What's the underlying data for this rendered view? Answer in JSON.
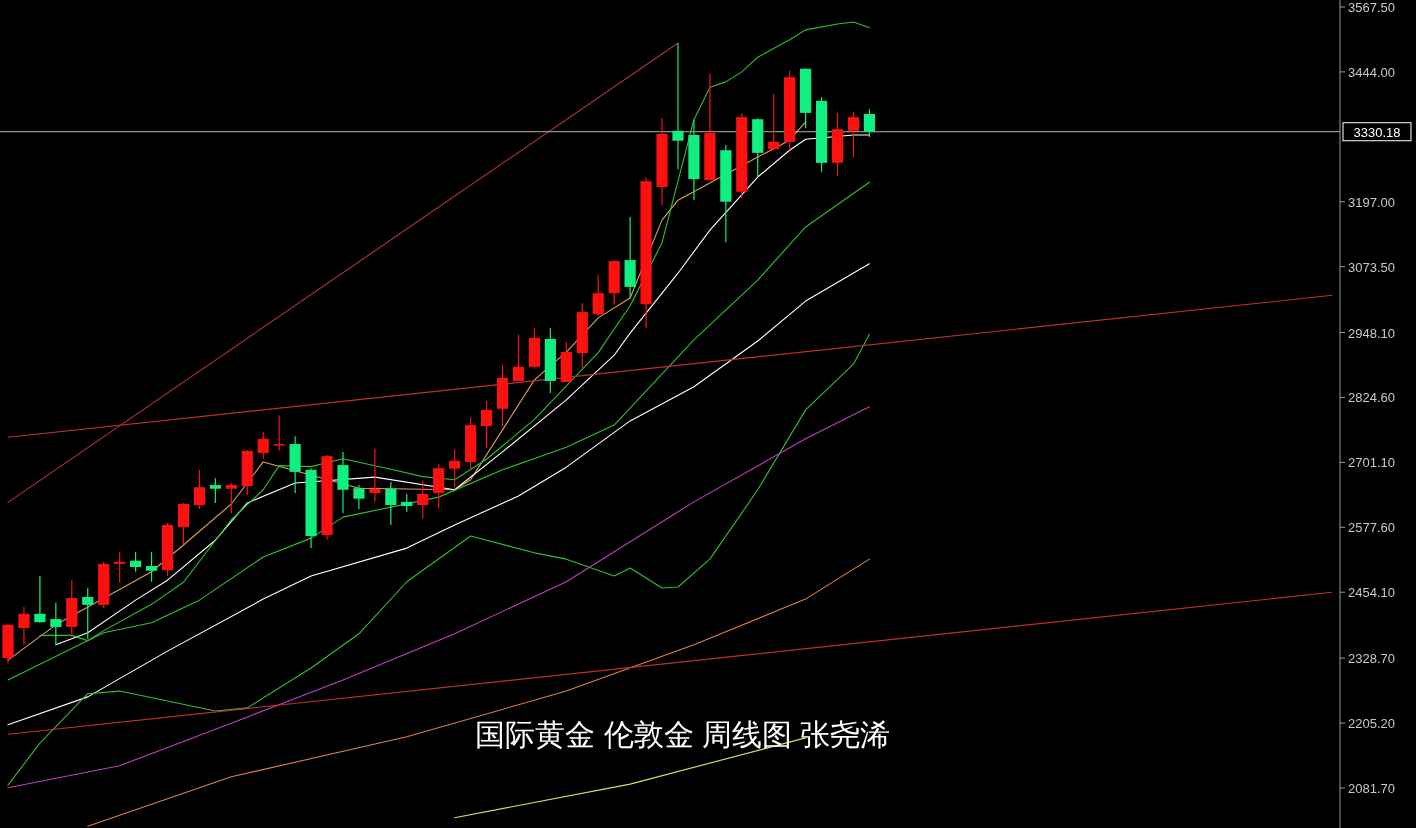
{
  "chart_data": {
    "type": "candlestick",
    "categories": [
      null,
      null,
      null,
      null,
      null,
      null,
      null,
      null,
      null,
      null,
      null,
      null,
      null,
      null,
      null,
      null,
      null,
      null,
      null,
      null,
      null,
      null,
      null,
      null,
      null,
      null,
      null,
      null,
      null,
      null,
      null,
      null,
      null,
      null,
      null,
      null,
      null,
      null,
      null,
      null,
      null,
      null,
      null,
      null,
      null,
      null,
      null,
      null,
      null,
      null,
      null,
      null,
      null,
      null,
      null,
      null,
      null,
      null,
      null,
      null,
      null,
      null,
      null,
      null,
      null,
      null,
      null,
      null,
      null,
      null,
      null,
      null,
      null,
      null,
      null,
      null,
      null,
      null,
      null,
      null,
      null,
      null,
      null,
      null
    ],
    "ohlc": [
      [
        2329,
        2394,
        2319,
        2392
      ],
      [
        2386,
        2426,
        2354,
        2413
      ],
      [
        2413,
        2485,
        2396,
        2397
      ],
      [
        2403,
        2434,
        2354,
        2388
      ],
      [
        2388,
        2477,
        2369,
        2443
      ],
      [
        2445,
        2462,
        2365,
        2430
      ],
      [
        2430,
        2512,
        2424,
        2508
      ],
      [
        2508,
        2531,
        2472,
        2512
      ],
      [
        2514,
        2531,
        2493,
        2502
      ],
      [
        2504,
        2531,
        2474,
        2495
      ],
      [
        2496,
        2586,
        2485,
        2582
      ],
      [
        2578,
        2624,
        2546,
        2622
      ],
      [
        2620,
        2687,
        2612,
        2654
      ],
      [
        2658,
        2671,
        2624,
        2651
      ],
      [
        2651,
        2662,
        2605,
        2658
      ],
      [
        2656,
        2724,
        2639,
        2723
      ],
      [
        2719,
        2759,
        2708,
        2746
      ],
      [
        2734,
        2791,
        2723,
        2736
      ],
      [
        2736,
        2751,
        2643,
        2683
      ],
      [
        2687,
        2690,
        2538,
        2561
      ],
      [
        2563,
        2715,
        2554,
        2713
      ],
      [
        2696,
        2721,
        2605,
        2649
      ],
      [
        2652,
        2658,
        2612,
        2632
      ],
      [
        2643,
        2727,
        2626,
        2651
      ],
      [
        2651,
        2664,
        2582,
        2620
      ],
      [
        2626,
        2641,
        2607,
        2618
      ],
      [
        2620,
        2666,
        2595,
        2641
      ],
      [
        2643,
        2698,
        2614,
        2690
      ],
      [
        2689,
        2725,
        2654,
        2704
      ],
      [
        2702,
        2786,
        2687,
        2772
      ],
      [
        2770,
        2818,
        2729,
        2801
      ],
      [
        2803,
        2886,
        2770,
        2862
      ],
      [
        2856,
        2944,
        2856,
        2883
      ],
      [
        2883,
        2957,
        2879,
        2938
      ],
      [
        2936,
        2957,
        2833,
        2856
      ],
      [
        2854,
        2930,
        2854,
        2911
      ],
      [
        2909,
        3004,
        2881,
        2987
      ],
      [
        2983,
        3058,
        2980,
        3023
      ],
      [
        3023,
        3086,
        3001,
        3084
      ],
      [
        3086,
        3168,
        3014,
        3035
      ],
      [
        3002,
        3244,
        2957,
        3236
      ],
      [
        3225,
        3356,
        3191,
        3326
      ],
      [
        3332,
        3499,
        3259,
        3313
      ],
      [
        3324,
        3353,
        3200,
        3240
      ],
      [
        3238,
        3440,
        3238,
        3328
      ],
      [
        3295,
        3305,
        3120,
        3197
      ],
      [
        3216,
        3366,
        3204,
        3358
      ],
      [
        3354,
        3356,
        3244,
        3290
      ],
      [
        3297,
        3402,
        3297,
        3311
      ],
      [
        3311,
        3446,
        3295,
        3434
      ],
      [
        3450,
        3451,
        3337,
        3366
      ],
      [
        3389,
        3396,
        3254,
        3271
      ],
      [
        3271,
        3366,
        3246,
        3335
      ],
      [
        3332,
        3368,
        3282,
        3358
      ],
      [
        3364,
        3373,
        3320,
        3330
      ],
      null,
      null,
      null,
      null,
      null,
      null,
      null,
      null,
      null,
      null,
      null,
      null,
      null,
      null,
      null,
      null,
      null,
      null,
      null,
      null,
      null,
      null,
      null,
      null,
      null,
      null,
      null,
      null,
      null
    ],
    "colors": [
      "#ff1010",
      "#ff1010",
      "#10f080",
      "#10f080",
      "#ff1010",
      "#10f080",
      "#ff1010",
      "#ff1010",
      "#10f080",
      "#10f080",
      "#ff1010",
      "#ff1010",
      "#ff1010",
      "#10f080",
      "#ff1010",
      "#ff1010",
      "#ff1010",
      "#ff1010",
      "#10f080",
      "#10f080",
      "#ff1010",
      "#10f080",
      "#10f080",
      "#ff1010",
      "#10f080",
      "#10f080",
      "#ff1010",
      "#ff1010",
      "#ff1010",
      "#ff1010",
      "#ff1010",
      "#ff1010",
      "#ff1010",
      "#ff1010",
      "#10f080",
      "#ff1010",
      "#ff1010",
      "#ff1010",
      "#ff1010",
      "#10f080",
      "#ff1010",
      "#ff1010",
      "#10f080",
      "#10f080",
      "#ff1010",
      "#10f080",
      "#ff1010",
      "#10f080",
      "#ff1010",
      "#ff1010",
      "#10f080",
      "#10f080",
      "#ff1010",
      "#ff1010",
      "#10f080",
      null,
      null,
      null,
      null,
      null,
      null,
      null,
      null,
      null,
      null,
      null,
      null,
      null,
      null,
      null,
      null,
      null,
      null,
      null,
      null,
      null,
      null,
      null,
      null,
      null,
      null,
      null,
      null,
      null
    ],
    "series": [
      {
        "type": "line",
        "color": "#e0a050",
        "values": [
          2325,
          null,
          null,
          2392,
          null,
          null,
          null,
          null,
          null,
          2493,
          null,
          2544,
          null,
          null,
          2622,
          null,
          2702,
          null,
          null,
          null,
          null,
          null,
          2652,
          null,
          null,
          null,
          null,
          null,
          2649,
          2668,
          null,
          2763,
          null,
          2858,
          null,
          2911,
          null,
          2976,
          null,
          3014,
          null,
          3162,
          3200,
          null,
          null,
          null,
          null,
          3282,
          null,
          3314,
          3349,
          null,
          null,
          null,
          null,
          null,
          null,
          null,
          null,
          null,
          null,
          null,
          null,
          null,
          null,
          null,
          null,
          null,
          null,
          null,
          null,
          null,
          null,
          null,
          null,
          null,
          null,
          null,
          null,
          null,
          null,
          null,
          null,
          null
        ]
      },
      {
        "type": "line",
        "color": "#ffffff",
        "values": [
          null,
          null,
          null,
          2354,
          null,
          2377,
          null,
          null,
          2439,
          null,
          2477,
          null,
          null,
          2553,
          null,
          2624,
          null,
          null,
          2662,
          null,
          null,
          null,
          null,
          2673,
          null,
          null,
          null,
          null,
          2649,
          null,
          null,
          2721,
          null,
          null,
          null,
          2820,
          null,
          null,
          2905,
          2947,
          null,
          null,
          3061,
          null,
          3143,
          null,
          null,
          3244,
          null,
          3295,
          3316,
          null,
          null,
          3324,
          3324,
          null,
          null,
          null,
          null,
          null,
          null,
          null,
          null,
          null,
          null,
          null,
          null,
          null,
          null,
          null,
          null,
          null,
          null,
          null,
          null,
          null,
          null,
          null,
          null,
          null,
          null,
          null,
          null,
          null
        ]
      },
      {
        "type": "line",
        "color": "#30c030",
        "values": [
          null,
          null,
          2372,
          null,
          2372,
          2362,
          2381,
          null,
          null,
          2431,
          null,
          2473,
          null,
          null,
          2592,
          null,
          2649,
          2695,
          null,
          2693,
          null,
          2708,
          null,
          null,
          2688,
          null,
          2674,
          null,
          2668,
          null,
          2707,
          null,
          null,
          2783,
          null,
          null,
          null,
          2910,
          null,
          2999,
          null,
          3119,
          null,
          3353,
          3415,
          3425,
          3444,
          3472,
          null,
          3505,
          3524,
          null,
          3535,
          3539,
          3528,
          null,
          null,
          null,
          null,
          null,
          null,
          null,
          null,
          null,
          null,
          null,
          null,
          null,
          null,
          null,
          null,
          null,
          null,
          null,
          null,
          null,
          null,
          null,
          null,
          null,
          null,
          null,
          null,
          null
        ]
      },
      {
        "type": "line",
        "color": "#30c030",
        "values": [
          2287,
          null,
          null,
          null,
          null,
          null,
          2377,
          null,
          null,
          2396,
          null,
          null,
          2439,
          null,
          null,
          null,
          2521,
          null,
          null,
          2557,
          null,
          2597,
          null,
          null,
          null,
          null,
          null,
          2635,
          null,
          null,
          null,
          2687,
          null,
          null,
          null,
          2730,
          null,
          null,
          2772,
          null,
          null,
          null,
          null,
          2934,
          null,
          null,
          null,
          3048,
          null,
          null,
          3149,
          null,
          null,
          null,
          3234,
          null,
          null,
          null,
          null,
          null,
          null,
          null,
          null,
          null,
          null,
          null,
          null,
          null,
          null,
          null,
          null,
          null,
          null,
          null,
          null,
          null,
          null,
          null,
          null,
          null,
          null,
          null,
          null,
          null
        ]
      },
      {
        "type": "line",
        "color": "#ffffff",
        "values": [
          2202,
          null,
          null,
          null,
          null,
          2255,
          null,
          null,
          null,
          null,
          2342,
          null,
          null,
          null,
          null,
          null,
          2441,
          null,
          null,
          2485,
          null,
          null,
          null,
          null,
          null,
          2538,
          null,
          null,
          2582,
          null,
          null,
          null,
          2637,
          null,
          null,
          2692,
          null,
          null,
          null,
          2780,
          null,
          null,
          null,
          2845,
          null,
          null,
          null,
          2932,
          null,
          null,
          3008,
          null,
          null,
          null,
          3079,
          null,
          null,
          null,
          null,
          null,
          null,
          null,
          null,
          null,
          null,
          null,
          null,
          null,
          null,
          null,
          null,
          null,
          null,
          null,
          null,
          null,
          null,
          null,
          null,
          null,
          null,
          null,
          null,
          null
        ]
      },
      {
        "type": "line",
        "color": "#30c030",
        "values": [
          2087,
          null,
          2167,
          null,
          null,
          2261,
          null,
          2266,
          null,
          null,
          null,
          null,
          null,
          2228,
          null,
          2234,
          null,
          null,
          null,
          2310,
          null,
          null,
          2375,
          null,
          null,
          2474,
          null,
          null,
          null,
          2561,
          null,
          null,
          null,
          2529,
          null,
          2517,
          null,
          null,
          2485,
          2500,
          null,
          2462,
          2464,
          null,
          2517,
          null,
          null,
          2649,
          null,
          null,
          2801,
          null,
          null,
          2888,
          2945,
          null,
          null,
          null,
          null,
          null,
          null,
          null,
          null,
          null,
          null,
          null,
          null,
          null,
          null,
          null,
          null,
          null,
          null,
          null,
          null,
          null,
          null,
          null,
          null,
          null,
          null,
          null,
          null,
          null
        ]
      },
      {
        "type": "line",
        "color": "#c040c0",
        "values": [
          2082,
          null,
          null,
          null,
          null,
          null,
          null,
          2124,
          null,
          null,
          null,
          null,
          null,
          null,
          2205,
          null,
          null,
          null,
          null,
          null,
          null,
          2287,
          null,
          null,
          null,
          null,
          null,
          null,
          2375,
          null,
          null,
          null,
          null,
          null,
          null,
          2474,
          null,
          null,
          null,
          null,
          null,
          null,
          null,
          2626,
          null,
          null,
          null,
          null,
          null,
          null,
          2746,
          null,
          null,
          null,
          2807,
          null,
          null,
          null,
          null,
          null,
          null,
          null,
          null,
          null,
          null,
          null,
          null,
          null,
          null,
          null,
          null,
          null,
          null,
          null,
          null,
          null,
          null,
          null,
          null,
          null,
          null,
          null,
          null,
          null
        ]
      },
      {
        "type": "line",
        "color": "#e08040",
        "values": [
          null,
          null,
          null,
          null,
          null,
          2009,
          null,
          null,
          null,
          null,
          null,
          null,
          null,
          null,
          2103,
          null,
          null,
          null,
          null,
          null,
          null,
          null,
          null,
          null,
          null,
          2179,
          null,
          null,
          null,
          null,
          null,
          null,
          null,
          null,
          null,
          2266,
          null,
          null,
          null,
          null,
          null,
          null,
          null,
          2354,
          null,
          null,
          null,
          null,
          null,
          null,
          2441,
          null,
          null,
          null,
          2517,
          null,
          null,
          null,
          null,
          null,
          null,
          null,
          null,
          null,
          null,
          null,
          null,
          null,
          null,
          null,
          null,
          null,
          null,
          null,
          null,
          null,
          null,
          null,
          null,
          null,
          null,
          null,
          null,
          null
        ]
      },
      {
        "type": "line",
        "color": "#e0e060",
        "values": [
          null,
          null,
          null,
          null,
          null,
          null,
          null,
          null,
          null,
          null,
          null,
          null,
          null,
          null,
          null,
          null,
          null,
          null,
          null,
          null,
          null,
          null,
          null,
          null,
          null,
          null,
          null,
          null,
          2025,
          null,
          null,
          null,
          null,
          null,
          null,
          null,
          null,
          null,
          null,
          2089,
          null,
          null,
          null,
          null,
          null,
          null,
          null,
          null,
          null,
          null,
          2177,
          null,
          null,
          null,
          null,
          null,
          null,
          null,
          null,
          null,
          null,
          null,
          null,
          null,
          null,
          null,
          null,
          null,
          null,
          null,
          null,
          null,
          null,
          null,
          null,
          null,
          null,
          null,
          null,
          null,
          null,
          null,
          null,
          null
        ]
      },
      {
        "type": "line",
        "color": "#c03030",
        "values": [
          2625,
          null,
          null,
          null,
          null,
          null,
          null,
          null,
          null,
          null,
          null,
          null,
          null,
          null,
          null,
          null,
          null,
          null,
          null,
          null,
          null,
          null,
          null,
          null,
          null,
          null,
          null,
          null,
          null,
          null,
          null,
          null,
          null,
          null,
          null,
          null,
          null,
          null,
          null,
          null,
          null,
          null,
          3499,
          null,
          null,
          null,
          null,
          null,
          null,
          null,
          null,
          null,
          null,
          null,
          null,
          null,
          null,
          null,
          null,
          null,
          null,
          null,
          null,
          null,
          null,
          null,
          null,
          null,
          null,
          null,
          null,
          null,
          null,
          null,
          null,
          null,
          null,
          null,
          null,
          null,
          null,
          null,
          null,
          null
        ]
      },
      {
        "type": "line",
        "color": "#c03030",
        "values": [
          2749,
          null,
          null,
          null,
          null,
          null,
          null,
          null,
          null,
          null,
          null,
          null,
          null,
          null,
          null,
          null,
          null,
          null,
          null,
          null,
          null,
          null,
          null,
          null,
          null,
          null,
          null,
          null,
          null,
          null,
          null,
          null,
          null,
          null,
          null,
          null,
          null,
          null,
          null,
          null,
          null,
          null,
          null,
          null,
          null,
          null,
          null,
          null,
          null,
          null,
          null,
          null,
          null,
          null,
          null,
          null,
          null,
          null,
          null,
          null,
          null,
          null,
          null,
          null,
          null,
          null,
          null,
          null,
          null,
          null,
          null,
          null,
          null,
          null,
          null,
          null,
          null,
          null,
          null,
          null,
          null,
          null,
          null,
          3019
        ]
      },
      {
        "type": "line",
        "color": "#c03030",
        "values": [
          2184,
          null,
          null,
          null,
          null,
          null,
          null,
          null,
          null,
          null,
          null,
          null,
          null,
          null,
          null,
          null,
          null,
          null,
          null,
          null,
          null,
          null,
          null,
          null,
          null,
          null,
          null,
          null,
          null,
          null,
          null,
          null,
          null,
          null,
          null,
          null,
          null,
          null,
          null,
          null,
          null,
          null,
          null,
          null,
          null,
          null,
          null,
          null,
          null,
          null,
          null,
          null,
          null,
          null,
          null,
          null,
          null,
          null,
          null,
          null,
          null,
          null,
          null,
          null,
          null,
          null,
          null,
          null,
          null,
          null,
          null,
          null,
          null,
          null,
          null,
          null,
          null,
          null,
          null,
          null,
          null,
          null,
          null,
          2454
        ]
      }
    ],
    "ylim": [
      2005.5,
      3580.8
    ],
    "yticks": [
      {
        "value": 3567.5,
        "label": "3567.50"
      },
      {
        "value": 3444,
        "label": "3444.00"
      },
      {
        "value": 3197,
        "label": "3197.00"
      },
      {
        "value": 3073.5,
        "label": "3073.50"
      },
      {
        "value": 2948.1,
        "label": "2948.10"
      },
      {
        "value": 2824.6,
        "label": "2824.60"
      },
      {
        "value": 2701.1,
        "label": "2701.10"
      },
      {
        "value": 2577.6,
        "label": "2577.60"
      },
      {
        "value": 2454.1,
        "label": "2454.10"
      },
      {
        "value": 2328.7,
        "label": "2328.70"
      },
      {
        "value": 2205.2,
        "label": "2205.20"
      },
      {
        "value": 2081.7,
        "label": "2081.70"
      }
    ],
    "ref_lines": [
      {
        "axis": "y",
        "value": 3330.18,
        "label": "3330.18",
        "color": "#b0b0b0"
      }
    ],
    "annotations": [
      "国际黄金 伦敦金 周线图 张尧浠"
    ]
  }
}
